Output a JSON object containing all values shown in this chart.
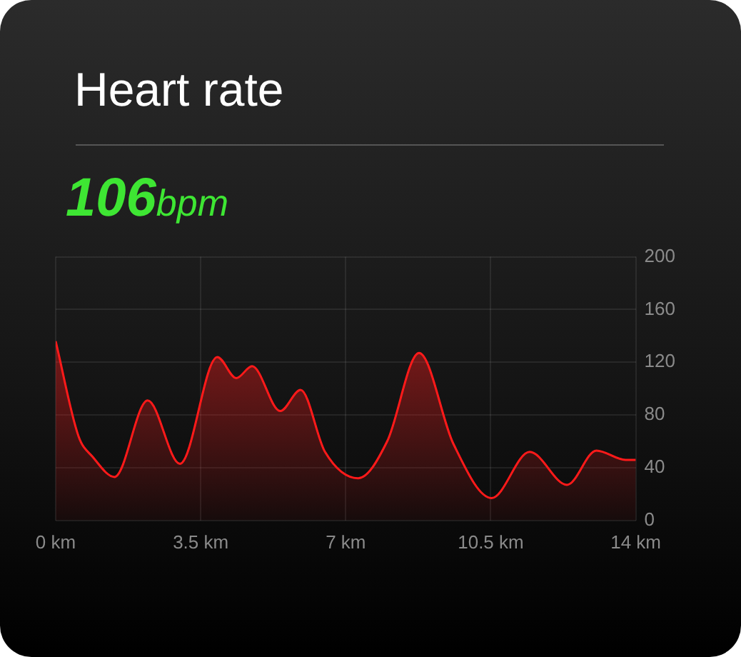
{
  "chart_data": {
    "type": "area",
    "title": "Heart rate",
    "subtitle": "106bpm",
    "x": [
      0,
      0.55,
      0.9,
      1.42,
      2.22,
      3.0,
      3.9,
      4.36,
      4.74,
      5.42,
      5.91,
      6.5,
      7.3,
      8.0,
      8.77,
      9.6,
      10.52,
      11.44,
      12.34,
      13.05,
      13.75,
      14
    ],
    "series": [
      {
        "color": "#ff1a1a",
        "values": [
          136,
          64,
          48,
          33,
          91,
          43,
          124,
          108,
          117,
          83,
          99,
          52,
          32,
          60,
          127,
          58,
          17,
          52,
          27,
          53,
          46,
          46
        ]
      }
    ],
    "xlim": [
      0,
      14
    ],
    "xticks": [
      {
        "value": 0,
        "label": "0 km"
      },
      {
        "value": 3.5,
        "label": "3.5 km"
      },
      {
        "value": 7,
        "label": "7 km"
      },
      {
        "value": 10.5,
        "label": "10.5 km"
      },
      {
        "value": 14,
        "label": "14 km"
      }
    ],
    "ylim": [
      0,
      200
    ],
    "yticks": [
      0,
      40,
      80,
      120,
      160,
      200
    ],
    "grid": true,
    "legend": false
  }
}
